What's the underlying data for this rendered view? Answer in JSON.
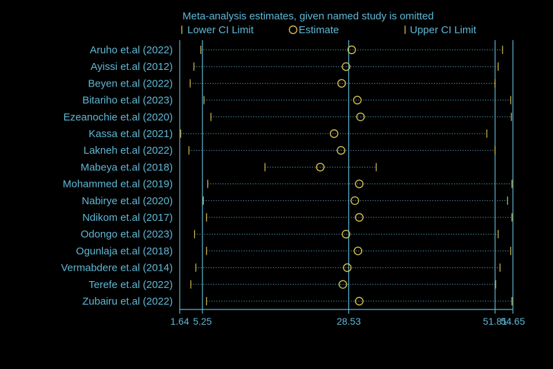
{
  "chart_data": {
    "type": "forest",
    "title": "Meta-analysis estimates, given named study is omitted",
    "legend": {
      "lower": "Lower CI Limit",
      "estimate": "Estimate",
      "upper": "Upper CI Limit",
      "placement": "top"
    },
    "xlim": [
      1.64,
      54.65
    ],
    "reference_lines": [
      1.64,
      5.25,
      28.53,
      51.81,
      54.65
    ],
    "tick_labels": [
      "1.64",
      "5.25",
      "28.53",
      "51.81",
      "54.65"
    ],
    "studies": [
      {
        "name": "Aruho et.al (2022)",
        "lower": 5.0,
        "estimate": 29.0,
        "upper": 53.0
      },
      {
        "name": "Ayissi et.al (2012)",
        "lower": 3.9,
        "estimate": 28.1,
        "upper": 52.3
      },
      {
        "name": "Beyen et.al (2022)",
        "lower": 3.3,
        "estimate": 27.4,
        "upper": 51.8
      },
      {
        "name": "Bitariho et.al (2023)",
        "lower": 5.5,
        "estimate": 29.9,
        "upper": 54.3
      },
      {
        "name": "Ezeanochie et.al (2020)",
        "lower": 6.6,
        "estimate": 30.4,
        "upper": 54.4
      },
      {
        "name": "Kassa et.al (2021)",
        "lower": 1.8,
        "estimate": 26.2,
        "upper": 50.5
      },
      {
        "name": "Lakneh et.al (2022)",
        "lower": 3.1,
        "estimate": 27.3,
        "upper": 51.8
      },
      {
        "name": "Mabeya et.al (2018)",
        "lower": 15.2,
        "estimate": 24.0,
        "upper": 32.9
      },
      {
        "name": "Mohammed et.al (2019)",
        "lower": 6.1,
        "estimate": 30.2,
        "upper": 54.5
      },
      {
        "name": "Nabirye et.al (2020)",
        "lower": 5.4,
        "estimate": 29.5,
        "upper": 53.8
      },
      {
        "name": "Ndikom et.al (2017)",
        "lower": 5.9,
        "estimate": 30.2,
        "upper": 54.5
      },
      {
        "name": "Odongo et.al (2023)",
        "lower": 4.0,
        "estimate": 28.1,
        "upper": 52.3
      },
      {
        "name": "Ogunlaja et.al (2018)",
        "lower": 5.9,
        "estimate": 30.0,
        "upper": 54.3
      },
      {
        "name": "Vermabdere et.al (2014)",
        "lower": 4.2,
        "estimate": 28.3,
        "upper": 52.6
      },
      {
        "name": "Terefe et.al (2022)",
        "lower": 3.4,
        "estimate": 27.6,
        "upper": 51.9
      },
      {
        "name": "Zubairu et.al (2022)",
        "lower": 5.9,
        "estimate": 30.2,
        "upper": 54.5
      }
    ],
    "colors": {
      "axis": "#5fb8d6",
      "ci_dots": "#5fb8d6",
      "marker": "#d7c14a",
      "background": "#000000"
    }
  }
}
